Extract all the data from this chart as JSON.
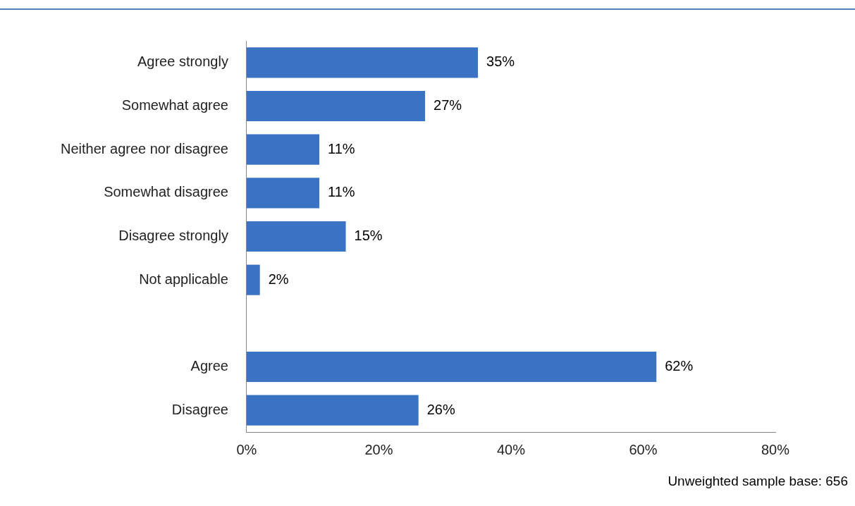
{
  "chart_data": {
    "type": "bar",
    "orientation": "horizontal",
    "categories": [
      "Agree strongly",
      "Somewhat agree",
      "Neither agree nor disagree",
      "Somewhat disagree",
      "Disagree strongly",
      "Not applicable",
      null,
      "Agree",
      "Disagree"
    ],
    "values": [
      35,
      27,
      11,
      11,
      15,
      2,
      null,
      62,
      26
    ],
    "value_labels": [
      "35%",
      "27%",
      "11%",
      "11%",
      "15%",
      "2%",
      null,
      "62%",
      "26%"
    ],
    "color": "#3a72c4",
    "xlim": [
      0,
      80
    ],
    "xticks": [
      {
        "value": 0,
        "label": "0%"
      },
      {
        "value": 20,
        "label": "20%"
      },
      {
        "value": 40,
        "label": "40%"
      },
      {
        "value": 60,
        "label": "60%"
      },
      {
        "value": 80,
        "label": "80%"
      }
    ],
    "grid": false,
    "legend": false,
    "annotations": [
      "Unweighted sample base: 656"
    ]
  }
}
